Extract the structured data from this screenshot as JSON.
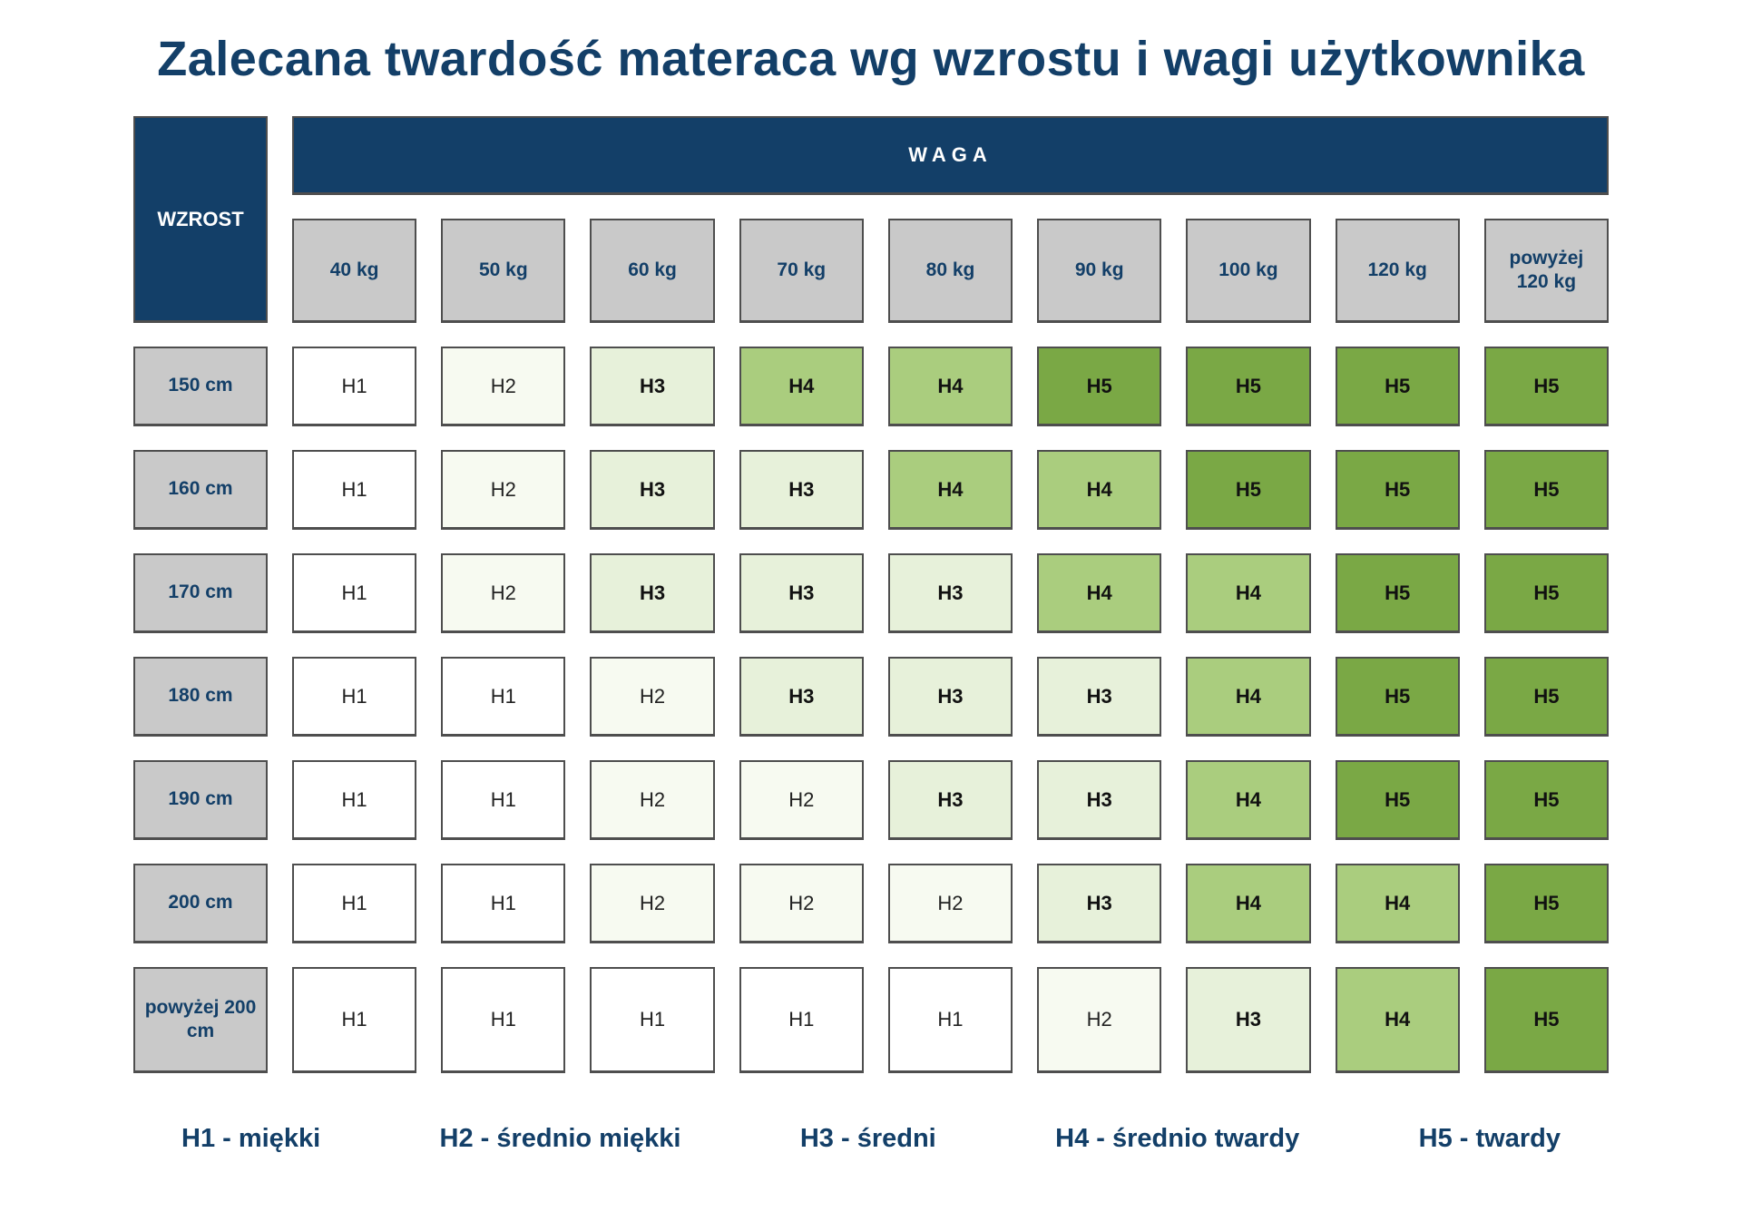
{
  "title": "Zalecana twardość materaca wg wzrostu i wagi użytkownika",
  "table": {
    "corner_label": "WZROST",
    "waga_label": "WAGA",
    "weight_headers": [
      "40 kg",
      "50 kg",
      "60 kg",
      "70 kg",
      "80 kg",
      "90 kg",
      "100 kg",
      "120 kg",
      "powyżej 120 kg"
    ],
    "rows": [
      {
        "height": "150 cm",
        "values": [
          "H1",
          "H2",
          "H3",
          "H4",
          "H4",
          "H5",
          "H5",
          "H5",
          "H5"
        ]
      },
      {
        "height": "160 cm",
        "values": [
          "H1",
          "H2",
          "H3",
          "H3",
          "H4",
          "H4",
          "H5",
          "H5",
          "H5"
        ]
      },
      {
        "height": "170 cm",
        "values": [
          "H1",
          "H2",
          "H3",
          "H3",
          "H3",
          "H4",
          "H4",
          "H5",
          "H5"
        ]
      },
      {
        "height": "180 cm",
        "values": [
          "H1",
          "H1",
          "H2",
          "H3",
          "H3",
          "H3",
          "H4",
          "H5",
          "H5"
        ]
      },
      {
        "height": "190 cm",
        "values": [
          "H1",
          "H1",
          "H2",
          "H2",
          "H3",
          "H3",
          "H4",
          "H5",
          "H5"
        ]
      },
      {
        "height": "200 cm",
        "values": [
          "H1",
          "H1",
          "H2",
          "H2",
          "H2",
          "H3",
          "H4",
          "H4",
          "H5"
        ]
      },
      {
        "height": "powyżej 200 cm",
        "values": [
          "H1",
          "H1",
          "H1",
          "H1",
          "H1",
          "H2",
          "H3",
          "H4",
          "H5"
        ]
      }
    ]
  },
  "legend": [
    {
      "label": "H1 - miękki"
    },
    {
      "label": "H2 - średnio miękki"
    },
    {
      "label": "H3 - średni"
    },
    {
      "label": "H4 - średnio twardy"
    },
    {
      "label": "H5 - twardy"
    }
  ],
  "colors": {
    "navy": "#133f68",
    "header_gray": "#c9c9c9",
    "cell_border": "#4e4e4e",
    "H1": "#ffffff",
    "H2": "#f7faf1",
    "H3": "#e7f1da",
    "H4": "#aacd7e",
    "H5": "#7aa845"
  },
  "chart_data": {
    "type": "heatmap",
    "title": "Zalecana twardość materaca wg wzrostu i wagi użytkownika",
    "xlabel": "WAGA",
    "ylabel": "WZROST",
    "x_categories": [
      "40 kg",
      "50 kg",
      "60 kg",
      "70 kg",
      "80 kg",
      "90 kg",
      "100 kg",
      "120 kg",
      "powyżej 120 kg"
    ],
    "y_categories": [
      "150 cm",
      "160 cm",
      "170 cm",
      "180 cm",
      "190 cm",
      "200 cm",
      "powyżej 200 cm"
    ],
    "values": [
      [
        "H1",
        "H2",
        "H3",
        "H4",
        "H4",
        "H5",
        "H5",
        "H5",
        "H5"
      ],
      [
        "H1",
        "H2",
        "H3",
        "H3",
        "H4",
        "H4",
        "H5",
        "H5",
        "H5"
      ],
      [
        "H1",
        "H2",
        "H3",
        "H3",
        "H3",
        "H4",
        "H4",
        "H5",
        "H5"
      ],
      [
        "H1",
        "H1",
        "H2",
        "H3",
        "H3",
        "H3",
        "H4",
        "H5",
        "H5"
      ],
      [
        "H1",
        "H1",
        "H2",
        "H2",
        "H3",
        "H3",
        "H4",
        "H5",
        "H5"
      ],
      [
        "H1",
        "H1",
        "H2",
        "H2",
        "H2",
        "H3",
        "H4",
        "H4",
        "H5"
      ],
      [
        "H1",
        "H1",
        "H1",
        "H1",
        "H1",
        "H2",
        "H3",
        "H4",
        "H5"
      ]
    ],
    "value_scale": [
      {
        "value": "H1",
        "meaning": "miękki",
        "color": "#ffffff"
      },
      {
        "value": "H2",
        "meaning": "średnio miękki",
        "color": "#f7faf1"
      },
      {
        "value": "H3",
        "meaning": "średni",
        "color": "#e7f1da"
      },
      {
        "value": "H4",
        "meaning": "średnio twardy",
        "color": "#aacd7e"
      },
      {
        "value": "H5",
        "meaning": "twardy",
        "color": "#7aa845"
      }
    ],
    "legend_position": "bottom",
    "grid": false
  }
}
